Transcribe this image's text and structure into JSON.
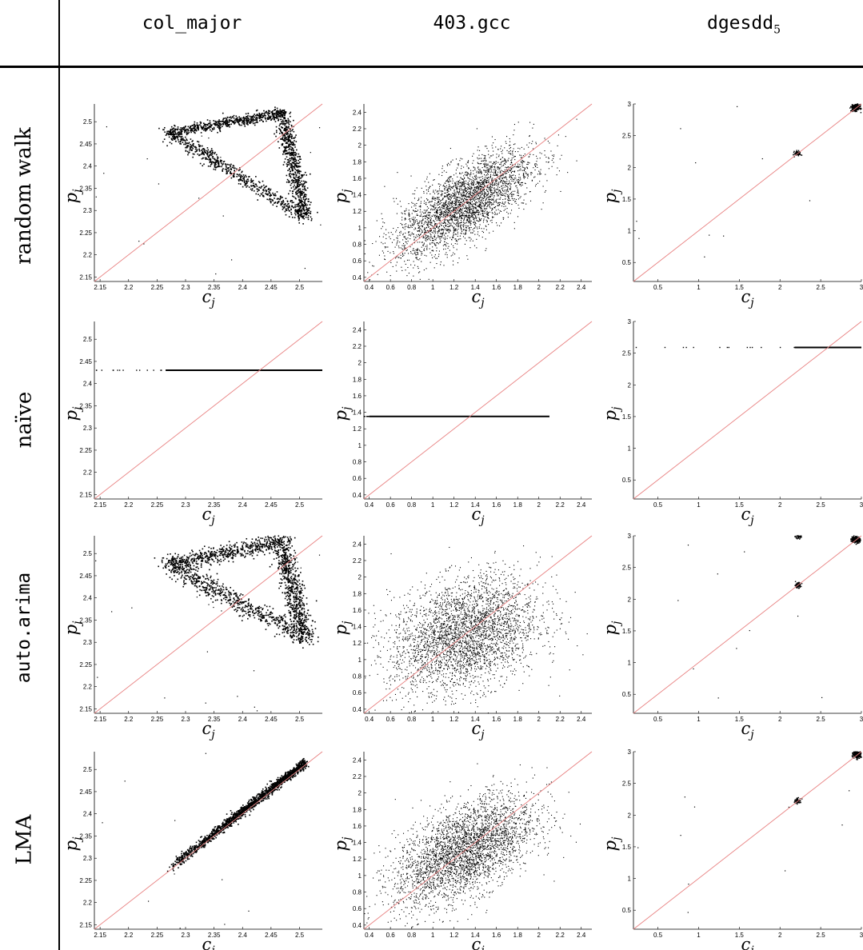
{
  "columns": [
    "col_major",
    "403.gcc",
    "dgesdd"
  ],
  "column_subscript": {
    "dgesdd": "5"
  },
  "rows": [
    "random walk",
    "naïve",
    "auto.arima",
    "LMA"
  ],
  "axis_labels": {
    "x": "c",
    "x_sub": "j",
    "y": "p",
    "y_sub": "j"
  },
  "colors": {
    "points": "#000000",
    "diagonal": "#e88080",
    "rule": "#000000"
  },
  "chart_data": [
    {
      "type": "scatter",
      "column": "col_major",
      "row": "random walk",
      "xlim": [
        2.14,
        2.54
      ],
      "ylim": [
        2.14,
        2.54
      ],
      "xticks": [
        "2.15",
        "2.2",
        "2.25",
        "2.3",
        "2.35",
        "2.4",
        "2.45",
        "2.5"
      ],
      "yticks": [
        "2.15",
        "2.2",
        "2.25",
        "2.3",
        "2.35",
        "2.4",
        "2.45",
        "2.5"
      ],
      "reference_line": "y = x",
      "pattern": "triangle",
      "clusters": [
        {
          "from": [
            2.27,
            2.475
          ],
          "to": [
            2.475,
            2.52
          ],
          "spread": 0.006
        },
        {
          "from": [
            2.27,
            2.475
          ],
          "to": [
            2.51,
            2.285
          ],
          "spread": 0.007
        },
        {
          "from": [
            2.47,
            2.51
          ],
          "to": [
            2.51,
            2.29
          ],
          "spread": 0.007
        }
      ]
    },
    {
      "type": "scatter",
      "column": "403.gcc",
      "row": "random walk",
      "xlim": [
        0.35,
        2.5
      ],
      "ylim": [
        0.35,
        2.5
      ],
      "xticks": [
        "0.4",
        "0.6",
        "0.8",
        "1",
        "1.2",
        "1.4",
        "1.6",
        "1.8",
        "2",
        "2.2",
        "2.4"
      ],
      "yticks": [
        "0.4",
        "0.6",
        "0.8",
        "1",
        "1.2",
        "1.4",
        "1.6",
        "1.8",
        "2",
        "2.2",
        "2.4"
      ],
      "reference_line": "y = x",
      "pattern": "correlated cloud",
      "center": [
        1.3,
        1.3
      ],
      "sd": [
        0.32,
        0.32
      ],
      "correlation": 0.7
    },
    {
      "type": "scatter",
      "column": "dgesdd",
      "row": "random walk",
      "xlim": [
        0.2,
        3.0
      ],
      "ylim": [
        0.2,
        3.0
      ],
      "xticks": [
        "0.5",
        "1",
        "1.5",
        "2",
        "2.5",
        "3"
      ],
      "yticks": [
        "0.5",
        "1",
        "1.5",
        "2",
        "2.5",
        "3"
      ],
      "reference_line": "y = x",
      "pattern": "clusters",
      "clusters_xy": [
        [
          2.93,
          2.94
        ],
        [
          2.22,
          2.22
        ]
      ]
    },
    {
      "type": "scatter",
      "column": "col_major",
      "row": "naïve",
      "xlim": [
        2.14,
        2.54
      ],
      "ylim": [
        2.14,
        2.54
      ],
      "xticks": [
        "2.15",
        "2.2",
        "2.25",
        "2.3",
        "2.35",
        "2.4",
        "2.45",
        "2.5"
      ],
      "yticks": [
        "2.15",
        "2.2",
        "2.25",
        "2.3",
        "2.35",
        "2.4",
        "2.45",
        "2.5"
      ],
      "reference_line": "y = x",
      "pattern": "horizontal line",
      "y_value": 2.43,
      "x_range": [
        2.265,
        2.54
      ]
    },
    {
      "type": "scatter",
      "column": "403.gcc",
      "row": "naïve",
      "xlim": [
        0.35,
        2.5
      ],
      "ylim": [
        0.35,
        2.5
      ],
      "xticks": [
        "0.4",
        "0.6",
        "0.8",
        "1",
        "1.2",
        "1.4",
        "1.6",
        "1.8",
        "2",
        "2.2",
        "2.4"
      ],
      "yticks": [
        "0.4",
        "0.6",
        "0.8",
        "1",
        "1.2",
        "1.4",
        "1.6",
        "1.8",
        "2",
        "2.2",
        "2.4"
      ],
      "reference_line": "y = x",
      "pattern": "horizontal line",
      "y_value": 1.35,
      "x_range": [
        0.4,
        2.1
      ]
    },
    {
      "type": "scatter",
      "column": "dgesdd",
      "row": "naïve",
      "xlim": [
        0.2,
        3.0
      ],
      "ylim": [
        0.2,
        3.0
      ],
      "xticks": [
        "0.5",
        "1",
        "1.5",
        "2",
        "2.5",
        "3"
      ],
      "yticks": [
        "0.5",
        "1",
        "1.5",
        "2",
        "2.5",
        "3"
      ],
      "reference_line": "y = x",
      "pattern": "horizontal line",
      "y_value": 2.59,
      "x_range": [
        2.18,
        3.0
      ]
    },
    {
      "type": "scatter",
      "column": "col_major",
      "row": "auto.arima",
      "xlim": [
        2.14,
        2.54
      ],
      "ylim": [
        2.14,
        2.54
      ],
      "xticks": [
        "2.15",
        "2.2",
        "2.25",
        "2.3",
        "2.35",
        "2.4",
        "2.45",
        "2.5"
      ],
      "yticks": [
        "2.15",
        "2.2",
        "2.25",
        "2.3",
        "2.35",
        "2.4",
        "2.45",
        "2.5"
      ],
      "reference_line": "y = x",
      "pattern": "triangle",
      "clusters": [
        {
          "from": [
            2.27,
            2.475
          ],
          "to": [
            2.475,
            2.53
          ],
          "spread": 0.009
        },
        {
          "from": [
            2.27,
            2.475
          ],
          "to": [
            2.51,
            2.31
          ],
          "spread": 0.01
        },
        {
          "from": [
            2.47,
            2.51
          ],
          "to": [
            2.51,
            2.31
          ],
          "spread": 0.009
        }
      ]
    },
    {
      "type": "scatter",
      "column": "403.gcc",
      "row": "auto.arima",
      "xlim": [
        0.35,
        2.5
      ],
      "ylim": [
        0.35,
        2.5
      ],
      "xticks": [
        "0.4",
        "0.6",
        "0.8",
        "1",
        "1.2",
        "1.4",
        "1.6",
        "1.8",
        "2",
        "2.2",
        "2.4"
      ],
      "yticks": [
        "0.4",
        "0.6",
        "0.8",
        "1",
        "1.2",
        "1.4",
        "1.6",
        "1.8",
        "2",
        "2.2",
        "2.4"
      ],
      "reference_line": "y = x",
      "pattern": "weakly correlated cloud",
      "center": [
        1.3,
        1.3
      ],
      "sd": [
        0.35,
        0.35
      ],
      "correlation": 0.3
    },
    {
      "type": "scatter",
      "column": "dgesdd",
      "row": "auto.arima",
      "xlim": [
        0.2,
        3.0
      ],
      "ylim": [
        0.2,
        3.0
      ],
      "xticks": [
        "0.5",
        "1",
        "1.5",
        "2",
        "2.5",
        "3"
      ],
      "yticks": [
        "0.5",
        "1",
        "1.5",
        "2",
        "2.5",
        "3"
      ],
      "reference_line": "y = x",
      "pattern": "clusters",
      "clusters_xy": [
        [
          2.93,
          2.94
        ],
        [
          2.22,
          2.22
        ],
        [
          2.22,
          3.0
        ]
      ]
    },
    {
      "type": "scatter",
      "column": "col_major",
      "row": "LMA",
      "xlim": [
        2.14,
        2.54
      ],
      "ylim": [
        2.14,
        2.54
      ],
      "xticks": [
        "2.15",
        "2.2",
        "2.25",
        "2.3",
        "2.35",
        "2.4",
        "2.45",
        "2.5"
      ],
      "yticks": [
        "2.15",
        "2.2",
        "2.25",
        "2.3",
        "2.35",
        "2.4",
        "2.45",
        "2.5"
      ],
      "reference_line": "y = x",
      "pattern": "diagonal band",
      "from": [
        2.275,
        2.28
      ],
      "to": [
        2.51,
        2.515
      ]
    },
    {
      "type": "scatter",
      "column": "403.gcc",
      "row": "LMA",
      "xlim": [
        0.35,
        2.5
      ],
      "ylim": [
        0.35,
        2.5
      ],
      "xticks": [
        "0.4",
        "0.6",
        "0.8",
        "1",
        "1.2",
        "1.4",
        "1.6",
        "1.8",
        "2",
        "2.2",
        "2.4"
      ],
      "yticks": [
        "0.4",
        "0.6",
        "0.8",
        "1",
        "1.2",
        "1.4",
        "1.6",
        "1.8",
        "2",
        "2.2",
        "2.4"
      ],
      "reference_line": "y = x",
      "pattern": "correlated cloud",
      "center": [
        1.3,
        1.3
      ],
      "sd": [
        0.33,
        0.33
      ],
      "correlation": 0.55
    },
    {
      "type": "scatter",
      "column": "dgesdd",
      "row": "LMA",
      "xlim": [
        0.2,
        3.0
      ],
      "ylim": [
        0.2,
        3.0
      ],
      "xticks": [
        "0.5",
        "1",
        "1.5",
        "2",
        "2.5",
        "3"
      ],
      "yticks": [
        "0.5",
        "1",
        "1.5",
        "2",
        "2.5",
        "3"
      ],
      "reference_line": "y = x",
      "pattern": "clusters",
      "clusters_xy": [
        [
          2.95,
          2.96
        ],
        [
          2.22,
          2.22
        ]
      ]
    }
  ]
}
